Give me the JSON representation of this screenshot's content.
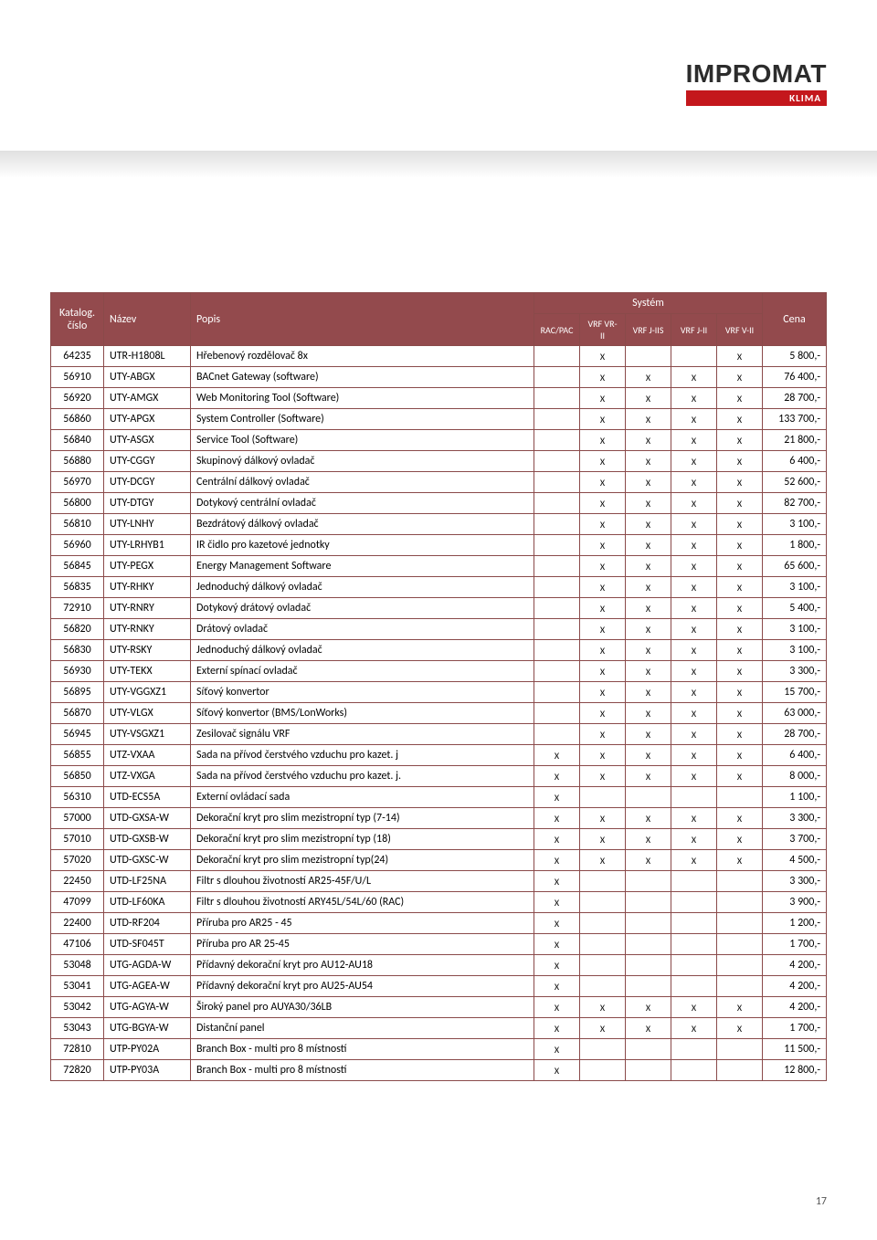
{
  "logo": {
    "main": "IMPROMAT",
    "sub": "KLIMA"
  },
  "page_number": "17",
  "header": {
    "katalog": "Katalog. číslo",
    "nazev": "Název",
    "popis": "Popis",
    "system": "Systém",
    "cena": "Cena",
    "sys_cols": [
      "RAC/PAC",
      "VRF VR-II",
      "VRF J-IIS",
      "VRF J-II",
      "VRF V-II"
    ]
  },
  "colors": {
    "header_bg": "#934a4d",
    "header_fg": "#ffffff",
    "border": "#8a4a4a",
    "logo_red": "#c4171c"
  },
  "rows": [
    {
      "kat": "64235",
      "naz": "UTR-H1808L",
      "pop": "Hřebenový rozdělovač 8x",
      "s": [
        "",
        "X",
        "",
        "",
        "X"
      ],
      "cena": "5 800,-"
    },
    {
      "kat": "56910",
      "naz": "UTY-ABGX",
      "pop": "BACnet Gateway (software)",
      "s": [
        "",
        "X",
        "X",
        "X",
        "X"
      ],
      "cena": "76 400,-"
    },
    {
      "kat": "56920",
      "naz": "UTY-AMGX",
      "pop": "Web Monitoring Tool (Software)",
      "s": [
        "",
        "X",
        "X",
        "X",
        "X"
      ],
      "cena": "28 700,-"
    },
    {
      "kat": "56860",
      "naz": "UTY-APGX",
      "pop": "System Controller (Software)",
      "s": [
        "",
        "X",
        "X",
        "X",
        "X"
      ],
      "cena": "133 700,-"
    },
    {
      "kat": "56840",
      "naz": "UTY-ASGX",
      "pop": "Service Tool (Software)",
      "s": [
        "",
        "X",
        "X",
        "X",
        "X"
      ],
      "cena": "21 800,-"
    },
    {
      "kat": "56880",
      "naz": "UTY-CGGY",
      "pop": "Skupinový dálkový ovladač",
      "s": [
        "",
        "X",
        "X",
        "X",
        "X"
      ],
      "cena": "6 400,-"
    },
    {
      "kat": "56970",
      "naz": "UTY-DCGY",
      "pop": "Centrální dálkový ovladač",
      "s": [
        "",
        "X",
        "X",
        "X",
        "X"
      ],
      "cena": "52 600,-"
    },
    {
      "kat": "56800",
      "naz": "UTY-DTGY",
      "pop": "Dotykový centrální ovladač",
      "s": [
        "",
        "X",
        "X",
        "X",
        "X"
      ],
      "cena": "82 700,-"
    },
    {
      "kat": "56810",
      "naz": "UTY-LNHY",
      "pop": "Bezdrátový dálkový ovladač",
      "s": [
        "",
        "X",
        "X",
        "X",
        "X"
      ],
      "cena": "3 100,-"
    },
    {
      "kat": "56960",
      "naz": "UTY-LRHYB1",
      "pop": "IR čidlo pro kazetové jednotky",
      "s": [
        "",
        "X",
        "X",
        "X",
        "X"
      ],
      "cena": "1 800,-"
    },
    {
      "kat": "56845",
      "naz": "UTY-PEGX",
      "pop": "Energy Management Software",
      "s": [
        "",
        "X",
        "X",
        "X",
        "X"
      ],
      "cena": "65 600,-"
    },
    {
      "kat": "56835",
      "naz": "UTY-RHKY",
      "pop": "Jednoduchý dálkový ovladač",
      "s": [
        "",
        "X",
        "X",
        "X",
        "X"
      ],
      "cena": "3 100,-"
    },
    {
      "kat": "72910",
      "naz": "UTY-RNRY",
      "pop": "Dotykový drátový ovladač",
      "s": [
        "",
        "X",
        "X",
        "X",
        "X"
      ],
      "cena": "5 400,-"
    },
    {
      "kat": "56820",
      "naz": "UTY-RNKY",
      "pop": "Drátový ovladač",
      "s": [
        "",
        "X",
        "X",
        "X",
        "X"
      ],
      "cena": "3 100,-"
    },
    {
      "kat": "56830",
      "naz": "UTY-RSKY",
      "pop": "Jednoduchý dálkový ovladač",
      "s": [
        "",
        "X",
        "X",
        "X",
        "X"
      ],
      "cena": "3 100,-"
    },
    {
      "kat": "56930",
      "naz": "UTY-TEKX",
      "pop": "Externí spínací ovladač",
      "s": [
        "",
        "X",
        "X",
        "X",
        "X"
      ],
      "cena": "3 300,-"
    },
    {
      "kat": "56895",
      "naz": "UTY-VGGXZ1",
      "pop": "Síťový konvertor",
      "s": [
        "",
        "X",
        "X",
        "X",
        "X"
      ],
      "cena": "15 700,-"
    },
    {
      "kat": "56870",
      "naz": "UTY-VLGX",
      "pop": "Síťový konvertor (BMS/LonWorks)",
      "s": [
        "",
        "X",
        "X",
        "X",
        "X"
      ],
      "cena": "63 000,-"
    },
    {
      "kat": "56945",
      "naz": "UTY-VSGXZ1",
      "pop": "Zesilovač signálu VRF",
      "s": [
        "",
        "X",
        "X",
        "X",
        "X"
      ],
      "cena": "28 700,-"
    },
    {
      "kat": "56855",
      "naz": "UTZ-VXAA",
      "pop": "Sada na přívod čerstvého vzduchu pro kazet. j",
      "s": [
        "X",
        "X",
        "X",
        "X",
        "X"
      ],
      "cena": "6 400,-"
    },
    {
      "kat": "56850",
      "naz": "UTZ-VXGA",
      "pop": "Sada na přívod čerstvého vzduchu pro kazet. j.",
      "s": [
        "X",
        "X",
        "X",
        "X",
        "X"
      ],
      "cena": "8 000,-"
    },
    {
      "kat": "56310",
      "naz": "UTD-ECS5A",
      "pop": "Externí ovládací sada",
      "s": [
        "X",
        "",
        "",
        "",
        ""
      ],
      "cena": "1 100,-"
    },
    {
      "kat": "57000",
      "naz": "UTD-GXSA-W",
      "pop": "Dekorační kryt pro slim mezistropní typ (7-14)",
      "s": [
        "X",
        "X",
        "X",
        "X",
        "X"
      ],
      "cena": "3 300,-"
    },
    {
      "kat": "57010",
      "naz": "UTD-GXSB-W",
      "pop": "Dekorační kryt pro slim mezistropní typ (18)",
      "s": [
        "X",
        "X",
        "X",
        "X",
        "X"
      ],
      "cena": "3 700,-"
    },
    {
      "kat": "57020",
      "naz": "UTD-GXSC-W",
      "pop": "Dekorační kryt pro slim mezistropní typ(24)",
      "s": [
        "X",
        "X",
        "X",
        "X",
        "X"
      ],
      "cena": "4 500,-"
    },
    {
      "kat": "22450",
      "naz": "UTD-LF25NA",
      "pop": "Filtr s dlouhou životností AR25-45F/U/L",
      "s": [
        "X",
        "",
        "",
        "",
        ""
      ],
      "cena": "3 300,-"
    },
    {
      "kat": "47099",
      "naz": "UTD-LF60KA",
      "pop": "Filtr s dlouhou životností ARY45L/54L/60 (RAC)",
      "s": [
        "X",
        "",
        "",
        "",
        ""
      ],
      "cena": "3 900,-"
    },
    {
      "kat": "22400",
      "naz": "UTD-RF204",
      "pop": "Příruba pro AR25 - 45",
      "s": [
        "X",
        "",
        "",
        "",
        ""
      ],
      "cena": "1 200,-"
    },
    {
      "kat": "47106",
      "naz": "UTD-SF045T",
      "pop": "Příruba pro AR 25-45",
      "s": [
        "X",
        "",
        "",
        "",
        ""
      ],
      "cena": "1 700,-"
    },
    {
      "kat": "53048",
      "naz": "UTG-AGDA-W",
      "pop": "Přídavný dekorační kryt pro AU12-AU18",
      "s": [
        "X",
        "",
        "",
        "",
        ""
      ],
      "cena": "4 200,-"
    },
    {
      "kat": "53041",
      "naz": "UTG-AGEA-W",
      "pop": "Přídavný dekorační kryt pro AU25-AU54",
      "s": [
        "X",
        "",
        "",
        "",
        ""
      ],
      "cena": "4 200,-"
    },
    {
      "kat": "53042",
      "naz": "UTG-AGYA-W",
      "pop": "Široký panel pro AUYA30/36LB",
      "s": [
        "X",
        "X",
        "X",
        "X",
        "X"
      ],
      "cena": "4 200,-"
    },
    {
      "kat": "53043",
      "naz": "UTG-BGYA-W",
      "pop": "Distanční panel",
      "s": [
        "X",
        "X",
        "X",
        "X",
        "X"
      ],
      "cena": "1 700,-"
    },
    {
      "kat": "72810",
      "naz": "UTP-PY02A",
      "pop": "Branch Box  - multi pro 8 místností",
      "s": [
        "X",
        "",
        "",
        "",
        ""
      ],
      "cena": "11 500,-"
    },
    {
      "kat": "72820",
      "naz": "UTP-PY03A",
      "pop": "Branch Box  - multi pro 8 místností",
      "s": [
        "X",
        "",
        "",
        "",
        ""
      ],
      "cena": "12 800,-"
    }
  ]
}
